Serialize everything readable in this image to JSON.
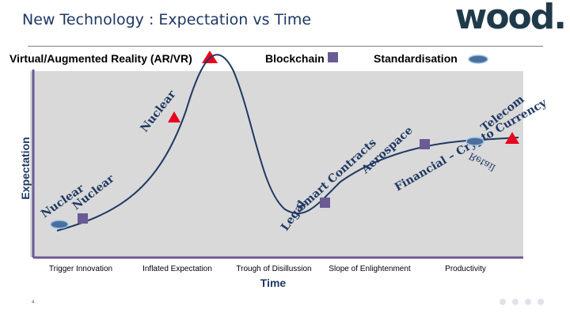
{
  "header": {
    "title": "New Technology : Expectation vs Time",
    "logo": "wood."
  },
  "legend": {
    "vr": "Virtual/Augmented Reality (AR/VR)",
    "blockchain": "Blockchain",
    "standardisation": "Standardisation"
  },
  "axes": {
    "y": "Expectation",
    "x": "Time"
  },
  "phases": [
    "Trigger Innovation",
    "Inflated Expectation",
    "Trough of Disillussion",
    "Slope of Enlightenment",
    "Productivity"
  ],
  "curve_labels": {
    "nuclear_low": "Nuclear",
    "nuclear_low2": "Nuclear",
    "nuclear_peak": "Nuclear",
    "legal": "Legal",
    "smart": "Smart Contracts",
    "aerospace": "Aerospace",
    "financial": "Financial – Crypto Currency",
    "telecom": "Telecom",
    "retail": "Retail"
  },
  "colors": {
    "vr": "#e8001c",
    "blockchain": "#6b5b95",
    "standardisation": "#4a6f9c",
    "curve": "#1f3864"
  },
  "footer": {
    "page": "4"
  }
}
